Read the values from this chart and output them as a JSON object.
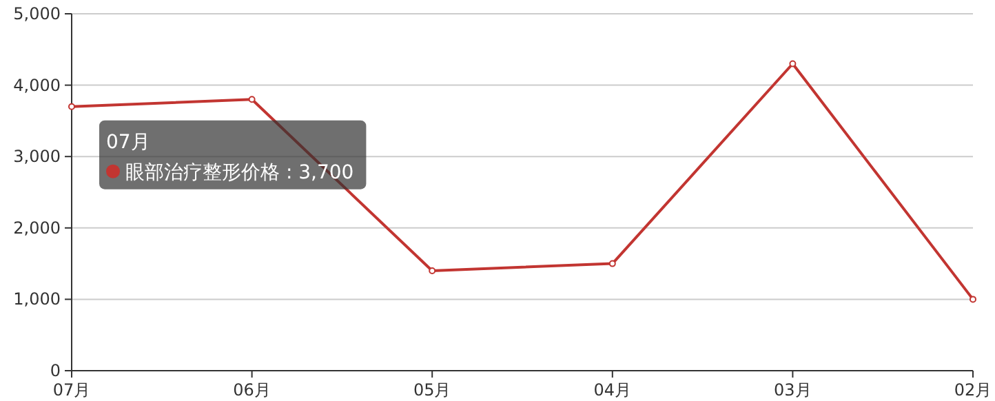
{
  "chart_data": {
    "type": "line",
    "categories": [
      "07月",
      "06月",
      "05月",
      "04月",
      "03月",
      "02月"
    ],
    "series": [
      {
        "name": "眼部治疗整形价格",
        "color": "#c23531",
        "values": [
          3700,
          3800,
          1400,
          1500,
          4300,
          1000
        ],
        "value_labels": [
          ": 3,700",
          null,
          null,
          null,
          null,
          null
        ]
      }
    ],
    "ylim": [
      0,
      5000
    ],
    "yticks": [
      {
        "value": 0,
        "label": "0"
      },
      {
        "value": 1000,
        "label": "1,000"
      },
      {
        "value": 2000,
        "label": "2,000"
      },
      {
        "value": 3000,
        "label": "3,000"
      },
      {
        "value": 4000,
        "label": "4,000"
      },
      {
        "value": 5000,
        "label": "5,000"
      }
    ],
    "grid": "y",
    "marker": "circle",
    "line_style": "solid",
    "legend": false
  }
}
